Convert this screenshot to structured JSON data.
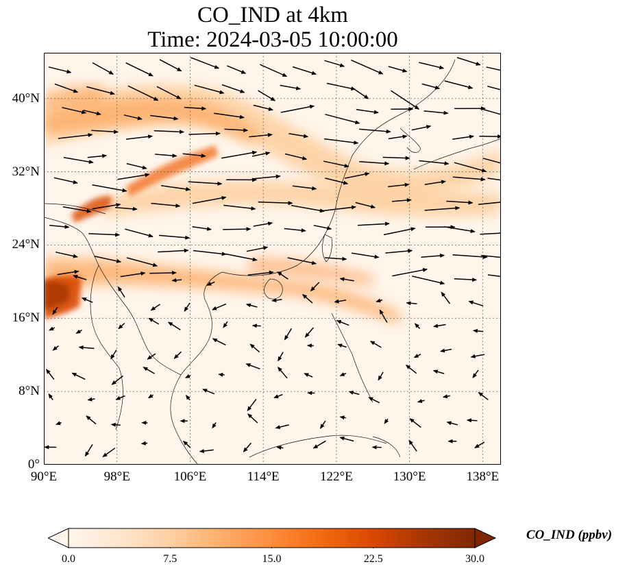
{
  "title": "CO_IND at 4km",
  "subtitle": "Time: 2024-03-05 10:00:00",
  "colorbar": {
    "label": "CO_IND (ppbv)",
    "min": 0,
    "max": 30,
    "extend": "both",
    "ticks": [
      "0.0",
      "7.5",
      "15.0",
      "22.5",
      "30.0"
    ],
    "colormap": [
      "#fff5eb",
      "#fee6ce",
      "#fdd0a2",
      "#fdae6b",
      "#fd8d3c",
      "#f16913",
      "#d94801",
      "#a63603",
      "#7f2704"
    ]
  },
  "map": {
    "lon_range": [
      90,
      140
    ],
    "lat_range": [
      0,
      45
    ],
    "lon_ticks": [
      "90°E",
      "98°E",
      "106°E",
      "114°E",
      "122°E",
      "130°E",
      "138°E"
    ],
    "lat_ticks": [
      "0°",
      "8°N",
      "16°N",
      "24°N",
      "32°N",
      "40°N"
    ],
    "gridlines": true,
    "wind_vectors": true
  }
}
